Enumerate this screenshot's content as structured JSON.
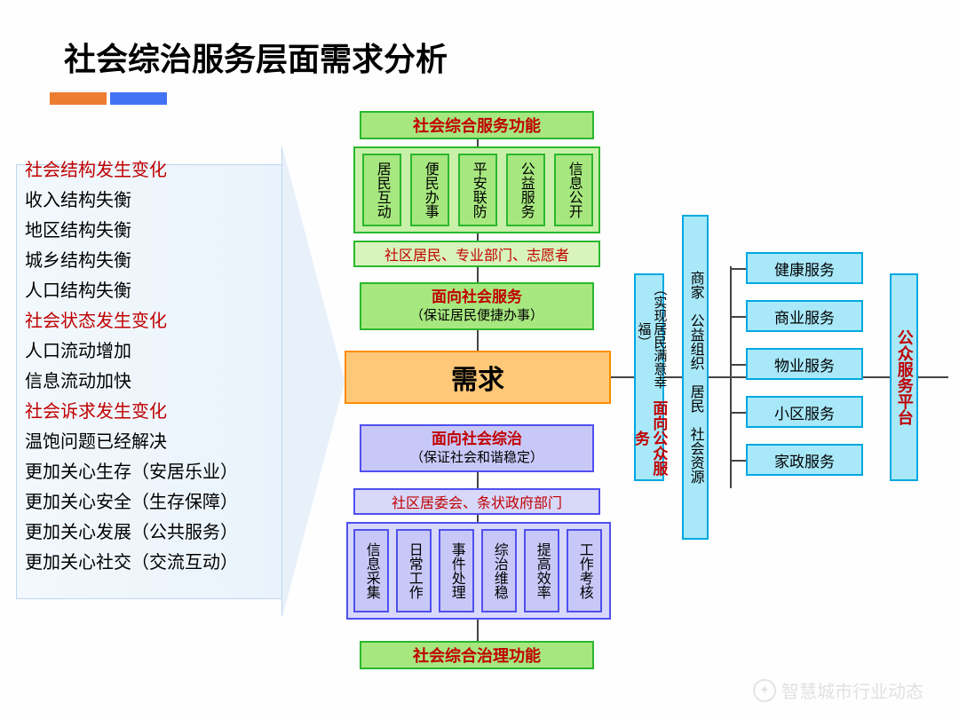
{
  "title": "社会综治服务层面需求分析",
  "accent": {
    "orange": "#ed7d31",
    "blue": "#4472f4"
  },
  "left_items": [
    {
      "text": "社会结构发生变化",
      "red": true
    },
    {
      "text": "收入结构失衡",
      "red": false
    },
    {
      "text": "地区结构失衡",
      "red": false
    },
    {
      "text": "城乡结构失衡",
      "red": false
    },
    {
      "text": "人口结构失衡",
      "red": false
    },
    {
      "text": "社会状态发生变化",
      "red": true
    },
    {
      "text": "人口流动增加",
      "red": false
    },
    {
      "text": "信息流动加快",
      "red": false
    },
    {
      "text": "社会诉求发生变化",
      "red": true
    },
    {
      "text": "温饱问题已经解决",
      "red": false
    },
    {
      "text": "更加关心生存（安居乐业）",
      "red": false
    },
    {
      "text": "更加关心安全（生存保障）",
      "red": false
    },
    {
      "text": "更加关心发展（公共服务）",
      "red": false
    },
    {
      "text": "更加关心社交（交流互动）",
      "red": false
    }
  ],
  "center": {
    "top_header": "社会综合服务功能",
    "top_subs": [
      "居民互动",
      "便民办事",
      "平安联防",
      "公益服务",
      "信息公开"
    ],
    "top_actors": "社区居民、专业部门、志愿者",
    "service_box": {
      "title": "面向社会服务",
      "sub": "（保证居民便捷办事）"
    },
    "demand": "需求",
    "governance_box": {
      "title": "面向社会综治",
      "sub": "（保证社会和谐稳定）"
    },
    "bottom_actors": "社区居委会、条状政府部门",
    "bottom_subs": [
      "信息采集",
      "日常工作",
      "事件处理",
      "综治维稳",
      "提高效率",
      "工作考核"
    ],
    "bottom_header": "社会综合治理功能"
  },
  "right": {
    "col1": {
      "title": "面向公众服务",
      "sub": "（实现居民满意幸福）"
    },
    "col2": "商家　公益组织　居民　社会资源",
    "services": [
      "健康服务",
      "商业服务",
      "物业服务",
      "小区服务",
      "家政服务"
    ],
    "platform": "公众服务平台"
  },
  "colors": {
    "green_border": "#2ab82e",
    "green_fill": "#a7e77f",
    "green_light": "#c8f0a8",
    "purple_border": "#5050f0",
    "purple_fill": "#c8c8f8",
    "orange_border": "#ff8c00",
    "orange_fill": "#ffc878",
    "cyan_border": "#00a8e0",
    "cyan_fill": "#a8e8f8",
    "red_text": "#c00000"
  },
  "watermark": "智慧城市行业动态"
}
